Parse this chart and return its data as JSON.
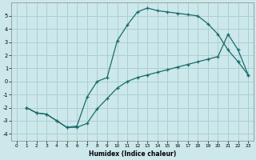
{
  "xlabel": "Humidex (Indice chaleur)",
  "bg_color": "#cce8ea",
  "grid_color": "#aacfd4",
  "line_color": "#1a6b6b",
  "xlim": [
    -0.5,
    23.5
  ],
  "ylim": [
    -4.5,
    6.0
  ],
  "xticks": [
    0,
    1,
    2,
    3,
    4,
    5,
    6,
    7,
    8,
    9,
    10,
    11,
    12,
    13,
    14,
    15,
    16,
    17,
    18,
    19,
    20,
    21,
    22,
    23
  ],
  "yticks": [
    -4,
    -3,
    -2,
    -1,
    0,
    1,
    2,
    3,
    4,
    5
  ],
  "curve1_x": [
    1,
    2,
    3,
    4,
    5,
    6,
    7,
    8,
    9,
    10,
    11,
    12,
    13,
    14,
    15,
    16,
    17,
    18,
    19,
    20,
    21,
    22
  ],
  "curve1_y": [
    -2.0,
    -2.4,
    -2.5,
    -3.0,
    -3.5,
    -3.4,
    -1.2,
    0.0,
    0.3,
    3.1,
    4.3,
    5.3,
    5.6,
    5.4,
    5.3,
    5.2,
    5.1,
    5.0,
    4.4,
    3.6,
    2.4,
    1.5
  ],
  "curve2_x": [
    1,
    2,
    3,
    4,
    5,
    6,
    7,
    8,
    9,
    10,
    11,
    12,
    13,
    14,
    15,
    16,
    17,
    18,
    19,
    20,
    21,
    22,
    23
  ],
  "curve2_y": [
    -2.0,
    -2.4,
    -2.5,
    -3.0,
    -3.5,
    -3.5,
    -3.2,
    -2.1,
    -1.3,
    -0.5,
    0.0,
    0.3,
    0.5,
    0.7,
    0.9,
    1.1,
    1.3,
    1.5,
    1.7,
    1.9,
    3.6,
    2.4,
    0.5
  ],
  "curve3_x": [
    22,
    23
  ],
  "curve3_y": [
    1.5,
    0.5
  ]
}
